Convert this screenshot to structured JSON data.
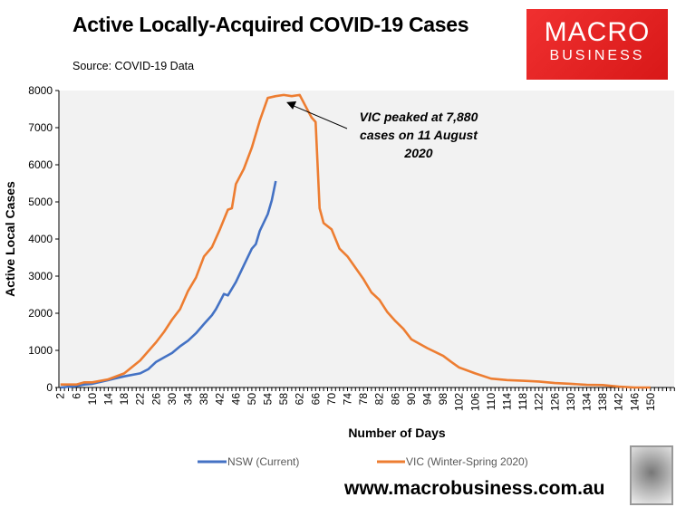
{
  "chart_data": {
    "type": "line",
    "title": "Active Locally-Acquired COVID-19 Cases",
    "subtitle": "Source: COVID-19 Data",
    "xlabel": "Number of Days",
    "ylabel": "Active Local Cases",
    "ylim": [
      0,
      8000
    ],
    "yticks": [
      0,
      1000,
      2000,
      3000,
      4000,
      5000,
      6000,
      7000,
      8000
    ],
    "xlim": [
      1,
      156
    ],
    "xticks": [
      2,
      6,
      10,
      14,
      18,
      22,
      26,
      30,
      34,
      38,
      42,
      46,
      50,
      54,
      58,
      62,
      66,
      70,
      74,
      78,
      82,
      86,
      90,
      94,
      98,
      102,
      106,
      110,
      114,
      118,
      122,
      126,
      130,
      134,
      138,
      142,
      146,
      150
    ],
    "grid": false,
    "legend_position": "bottom",
    "annotation": {
      "lines": [
        "VIC peaked at 7,880",
        "cases on 11 August",
        "2020"
      ],
      "target": {
        "x": 58,
        "y": 7880
      }
    },
    "series": [
      {
        "name": "NSW (Current)",
        "color": "#4472C4",
        "x": [
          2,
          6,
          8,
          10,
          14,
          18,
          22,
          24,
          26,
          28,
          30,
          32,
          34,
          36,
          38,
          40,
          41,
          42,
          43,
          44,
          46,
          48,
          50,
          51,
          52,
          54,
          55,
          56
        ],
        "y": [
          0,
          40,
          80,
          100,
          200,
          300,
          380,
          490,
          690,
          810,
          930,
          1110,
          1260,
          1460,
          1710,
          1950,
          2110,
          2310,
          2520,
          2480,
          2840,
          3290,
          3740,
          3860,
          4220,
          4670,
          5040,
          5560
        ]
      },
      {
        "name": "VIC (Winter-Spring 2020)",
        "color": "#ED7D31",
        "x": [
          2,
          6,
          8,
          10,
          14,
          18,
          22,
          26,
          28,
          30,
          32,
          34,
          36,
          38,
          40,
          42,
          44,
          45,
          46,
          48,
          50,
          52,
          54,
          56,
          58,
          60,
          62,
          64,
          65,
          66,
          67,
          68,
          70,
          72,
          74,
          78,
          80,
          82,
          84,
          86,
          88,
          90,
          94,
          98,
          100,
          102,
          106,
          110,
          114,
          118,
          122,
          126,
          130,
          134,
          138,
          142,
          146,
          150
        ],
        "y": [
          80,
          80,
          140,
          140,
          220,
          380,
          730,
          1220,
          1500,
          1830,
          2110,
          2600,
          2960,
          3530,
          3780,
          4260,
          4790,
          4830,
          5480,
          5890,
          6460,
          7190,
          7800,
          7850,
          7880,
          7850,
          7880,
          7470,
          7270,
          7150,
          4830,
          4430,
          4260,
          3740,
          3530,
          2920,
          2560,
          2360,
          2030,
          1790,
          1580,
          1300,
          1060,
          850,
          690,
          540,
          380,
          240,
          200,
          180,
          160,
          120,
          100,
          70,
          65,
          25,
          0,
          0
        ]
      }
    ]
  },
  "logo": {
    "line1": "MACRO",
    "line2": "BUSINESS"
  },
  "footer": {
    "url": "www.macrobusiness.com.au"
  }
}
